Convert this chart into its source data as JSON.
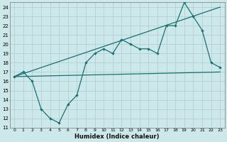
{
  "xlabel": "Humidex (Indice chaleur)",
  "background_color": "#cce8ea",
  "grid_color": "#aacccc",
  "line_color": "#1a7070",
  "xlim": [
    -0.5,
    23.5
  ],
  "ylim": [
    11,
    24.5
  ],
  "ytick_min": 11,
  "ytick_max": 24,
  "xtick_max": 23,
  "jagged_x": [
    0,
    1,
    2,
    3,
    4,
    5,
    6,
    7,
    8,
    9,
    10,
    11,
    12,
    13,
    14,
    15,
    16,
    17,
    18,
    19,
    20,
    21,
    22,
    23
  ],
  "jagged_y": [
    16.5,
    17.0,
    16.0,
    13.0,
    12.0,
    11.5,
    13.5,
    14.5,
    18.0,
    19.0,
    19.5,
    19.0,
    20.5,
    20.0,
    19.5,
    19.5,
    19.0,
    22.0,
    22.0,
    24.5,
    23.0,
    21.5,
    18.0,
    17.5
  ],
  "trend1_x": [
    0,
    23
  ],
  "trend1_y": [
    16.5,
    24.0
  ],
  "trend2_x": [
    0,
    23
  ],
  "trend2_y": [
    16.5,
    17.0
  ],
  "marker_x": [
    0,
    1,
    2,
    3,
    4,
    5,
    6,
    7,
    8,
    9,
    10,
    11,
    12,
    13,
    14,
    15,
    16,
    17,
    18,
    19,
    20,
    21,
    22,
    23
  ],
  "marker_y": [
    16.5,
    17.0,
    16.0,
    13.0,
    12.0,
    11.5,
    13.5,
    14.5,
    18.0,
    19.0,
    19.5,
    19.0,
    20.5,
    20.0,
    19.5,
    19.5,
    19.0,
    22.0,
    22.0,
    24.5,
    23.0,
    21.5,
    18.0,
    17.5
  ]
}
